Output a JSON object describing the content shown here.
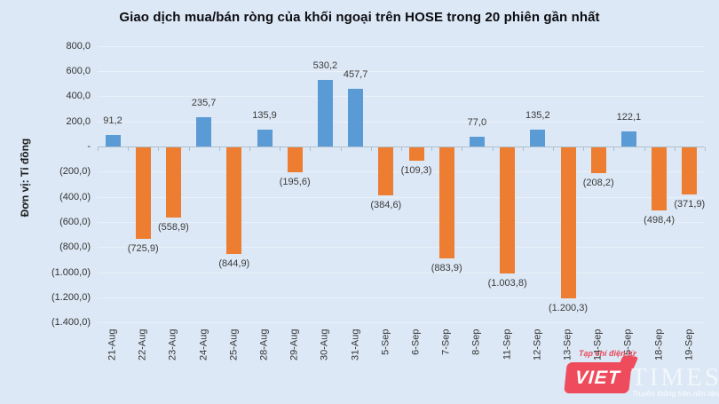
{
  "chart_data": {
    "type": "bar",
    "title": "Giao dịch mua/bán ròng của khối ngoại trên HOSE trong 20 phiên gần nhất",
    "ylabel": "Đơn vị: Tỉ đồng",
    "xlabel": "",
    "categories": [
      "21-Aug",
      "22-Aug",
      "23-Aug",
      "24-Aug",
      "25-Aug",
      "28-Aug",
      "29-Aug",
      "30-Aug",
      "31-Aug",
      "5-Sep",
      "6-Sep",
      "7-Sep",
      "8-Sep",
      "11-Sep",
      "12-Sep",
      "13-Sep",
      "14-Sep",
      "15-Sep",
      "18-Sep",
      "19-Sep"
    ],
    "values": [
      91.2,
      -725.9,
      -558.9,
      235.7,
      -844.9,
      135.9,
      -195.6,
      530.2,
      457.7,
      -384.6,
      -109.3,
      -883.9,
      77.0,
      -1003.8,
      135.2,
      -1200.3,
      -208.2,
      122.1,
      -498.4,
      -371.9
    ],
    "value_labels": [
      "91,2",
      "(725,9)",
      "(558,9)",
      "235,7",
      "(844,9)",
      "135,9",
      "(195,6)",
      "530,2",
      "457,7",
      "(384,6)",
      "(109,3)",
      "(883,9)",
      "77,0",
      "(1.003,8)",
      "135,2",
      "(1.200,3)",
      "(208,2)",
      "122,1",
      "(498,4)",
      "(371,9)"
    ],
    "y_ticks": [
      {
        "value": 800,
        "label": "800,0"
      },
      {
        "value": 600,
        "label": "600,0"
      },
      {
        "value": 400,
        "label": "400,0"
      },
      {
        "value": 200,
        "label": "200,0"
      },
      {
        "value": 0,
        "label": "-"
      },
      {
        "value": -200,
        "label": "(200,0)"
      },
      {
        "value": -400,
        "label": "(400,0)"
      },
      {
        "value": -600,
        "label": "(600,0)"
      },
      {
        "value": -800,
        "label": "(800,0)"
      },
      {
        "value": -1000,
        "label": "(1.000,0)"
      },
      {
        "value": -1200,
        "label": "(1.200,0)"
      },
      {
        "value": -1400,
        "label": "(1.400,0)"
      }
    ],
    "ylim": [
      -1400,
      800
    ],
    "grid": true,
    "legend_position": "none",
    "colors": {
      "positive": "#5b9bd5",
      "negative": "#ed7d31",
      "background": "#dce8f5",
      "gridline": "#e9f1fa",
      "axis": "#aebfcd"
    }
  },
  "watermark": {
    "publisher": "Tạp chí điện tử",
    "brand_primary": "VIET",
    "brand_secondary": "TIMES",
    "tagline": "Truyền thông trên nền tảng số",
    "badge_color": "#ee4b5c"
  }
}
